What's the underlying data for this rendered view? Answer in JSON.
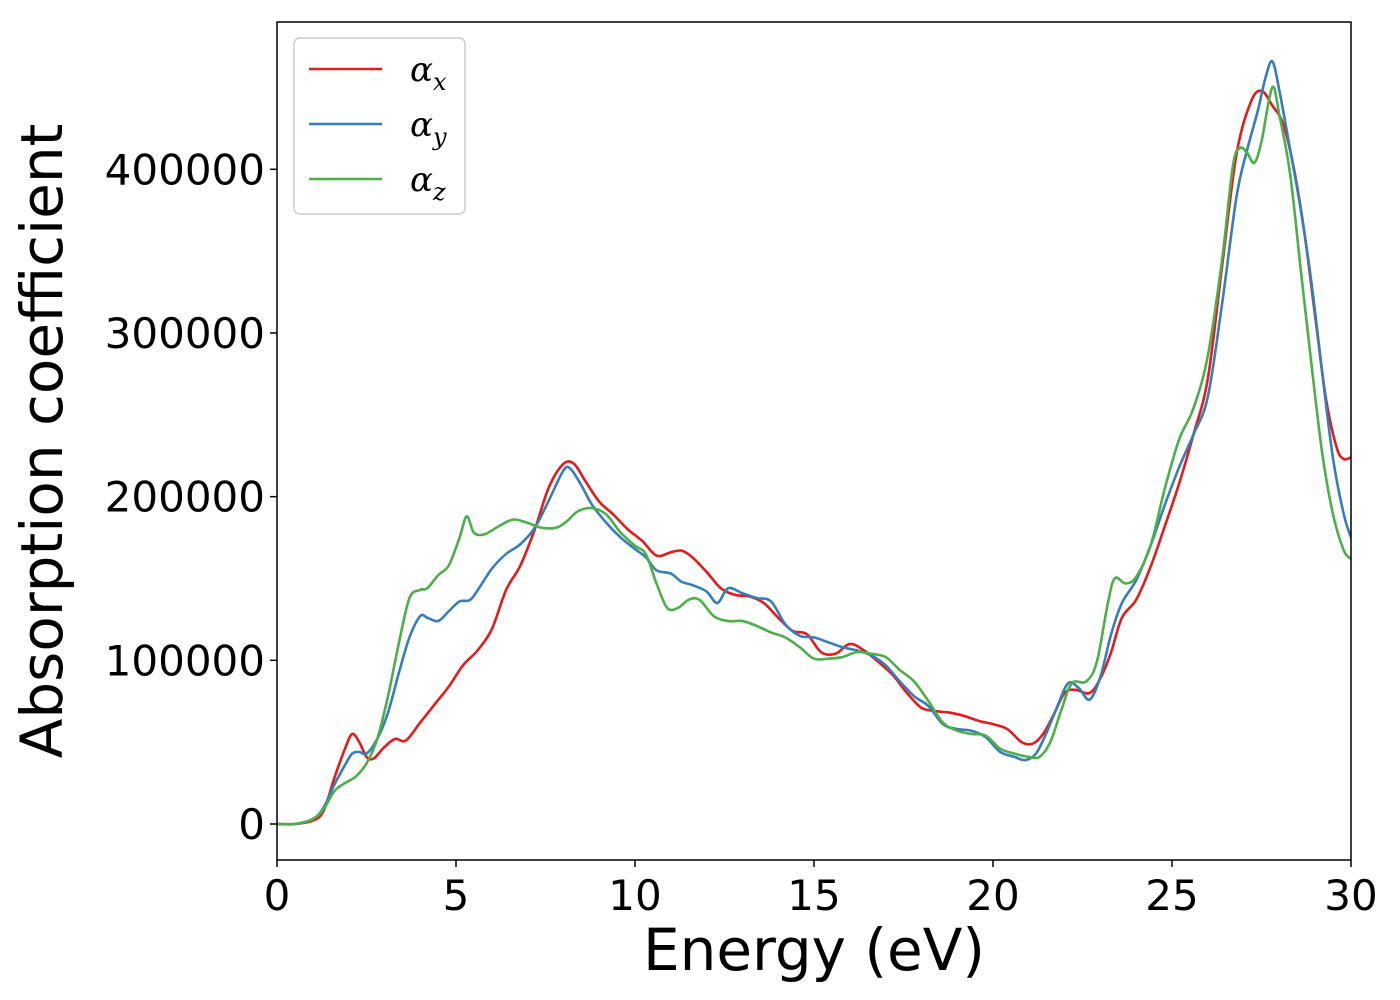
{
  "chart_data": {
    "type": "line",
    "xlabel": "Energy (eV)",
    "ylabel": "Absorption coefficient",
    "xlim": [
      0,
      30
    ],
    "ylim": [
      -22000,
      490000
    ],
    "xticks": [
      0,
      5,
      10,
      15,
      20,
      25,
      30
    ],
    "xtick_labels": [
      "0",
      "5",
      "10",
      "15",
      "20",
      "25",
      "30"
    ],
    "yticks": [
      0,
      100000,
      200000,
      300000,
      400000
    ],
    "ytick_labels": [
      "0",
      "100000",
      "200000",
      "300000",
      "400000"
    ],
    "grid": false,
    "legend_position": "top-left",
    "series": [
      {
        "name": "α",
        "name_subscript": "x",
        "color": "#e41a1c",
        "x": [
          0,
          0.5,
          1.0,
          1.3,
          1.6,
          1.9,
          2.1,
          2.3,
          2.5,
          2.7,
          3.0,
          3.3,
          3.6,
          4.0,
          4.4,
          4.8,
          5.2,
          5.6,
          6.0,
          6.4,
          6.8,
          7.2,
          7.6,
          8.0,
          8.3,
          8.6,
          9.0,
          9.4,
          9.8,
          10.2,
          10.6,
          11.0,
          11.3,
          11.6,
          12.0,
          12.4,
          12.8,
          13.2,
          13.6,
          14.0,
          14.4,
          14.8,
          15.2,
          15.6,
          16.0,
          16.4,
          16.8,
          17.2,
          17.6,
          18.0,
          18.4,
          18.8,
          19.2,
          19.6,
          20.0,
          20.4,
          20.8,
          21.1,
          21.4,
          21.7,
          22.0,
          22.3,
          22.7,
          23.0,
          23.3,
          23.6,
          24.0,
          24.4,
          24.8,
          25.2,
          25.6,
          26.0,
          26.4,
          26.8,
          27.2,
          27.5,
          27.8,
          28.1,
          28.4,
          28.7,
          29.0,
          29.3,
          29.6,
          29.8,
          30.0
        ],
        "y": [
          0,
          0,
          2000,
          8000,
          28000,
          46000,
          55000,
          50000,
          41000,
          40000,
          47000,
          52000,
          51000,
          62000,
          73000,
          84000,
          97000,
          106000,
          119000,
          143000,
          158000,
          180000,
          206000,
          220000,
          220000,
          210000,
          197000,
          189000,
          180000,
          173000,
          164000,
          166000,
          167000,
          163000,
          154000,
          144000,
          140000,
          139000,
          135000,
          126000,
          118000,
          116000,
          105000,
          104000,
          110000,
          106000,
          99000,
          91000,
          80000,
          71000,
          69000,
          68000,
          66000,
          63000,
          61000,
          58000,
          50000,
          49000,
          55000,
          67000,
          80000,
          82000,
          80000,
          89000,
          105000,
          126000,
          137000,
          157000,
          182000,
          208000,
          238000,
          272000,
          341000,
          409000,
          441000,
          448000,
          439000,
          428000,
          401000,
          361000,
          310000,
          260000,
          230000,
          223000,
          224000
        ]
      },
      {
        "name": "α",
        "name_subscript": "y",
        "color": "#377eb8",
        "x": [
          0,
          0.5,
          1.0,
          1.3,
          1.6,
          1.9,
          2.1,
          2.3,
          2.5,
          2.8,
          3.1,
          3.4,
          3.7,
          4.0,
          4.2,
          4.5,
          4.8,
          5.1,
          5.4,
          5.7,
          6.0,
          6.4,
          6.8,
          7.2,
          7.6,
          8.0,
          8.2,
          8.5,
          8.8,
          9.2,
          9.6,
          10.0,
          10.3,
          10.6,
          11.0,
          11.3,
          11.6,
          12.0,
          12.3,
          12.6,
          13.0,
          13.4,
          13.8,
          14.2,
          14.6,
          15.0,
          15.4,
          15.8,
          16.2,
          16.6,
          17.0,
          17.4,
          17.8,
          18.2,
          18.6,
          19.0,
          19.4,
          19.8,
          20.2,
          20.6,
          20.9,
          21.2,
          21.5,
          21.8,
          22.1,
          22.4,
          22.7,
          23.0,
          23.3,
          23.6,
          24.0,
          24.4,
          24.8,
          25.2,
          25.6,
          26.0,
          26.4,
          26.8,
          27.1,
          27.4,
          27.6,
          27.8,
          28.0,
          28.3,
          28.6,
          28.9,
          29.2,
          29.5,
          29.8,
          30.0
        ],
        "y": [
          0,
          0,
          3000,
          10000,
          24000,
          36000,
          43000,
          44000,
          43000,
          52000,
          68000,
          92000,
          114000,
          127000,
          126000,
          124000,
          130000,
          136000,
          137000,
          146000,
          156000,
          165000,
          171000,
          181000,
          198000,
          216000,
          217000,
          207000,
          195000,
          184000,
          175000,
          168000,
          163000,
          155000,
          153000,
          148000,
          146000,
          142000,
          135000,
          144000,
          141000,
          138000,
          136000,
          122000,
          115000,
          114000,
          111000,
          108000,
          106000,
          103000,
          97000,
          87000,
          78000,
          72000,
          61000,
          58000,
          57000,
          53000,
          44000,
          41000,
          39000,
          43000,
          56000,
          72000,
          86000,
          83000,
          76000,
          90000,
          116000,
          135000,
          149000,
          170000,
          195000,
          218000,
          238000,
          261000,
          318000,
          383000,
          412000,
          436000,
          455000,
          466000,
          448000,
          412000,
          375000,
          330000,
          275000,
          223000,
          189000,
          175000
        ]
      },
      {
        "name": "α",
        "name_subscript": "z",
        "color": "#4daf4a",
        "x": [
          0,
          0.5,
          1.0,
          1.3,
          1.6,
          1.9,
          2.2,
          2.5,
          2.8,
          3.1,
          3.4,
          3.7,
          4.0,
          4.2,
          4.5,
          4.8,
          5.1,
          5.3,
          5.5,
          5.8,
          6.2,
          6.6,
          7.0,
          7.4,
          7.8,
          8.1,
          8.4,
          8.8,
          9.2,
          9.6,
          10.0,
          10.3,
          10.6,
          10.9,
          11.2,
          11.5,
          11.8,
          12.2,
          12.6,
          13.0,
          13.4,
          13.8,
          14.2,
          14.6,
          15.0,
          15.4,
          15.8,
          16.2,
          16.6,
          17.0,
          17.4,
          17.8,
          18.2,
          18.6,
          19.0,
          19.4,
          19.8,
          20.2,
          20.6,
          21.0,
          21.3,
          21.6,
          21.9,
          22.2,
          22.6,
          22.9,
          23.2,
          23.4,
          23.7,
          24.0,
          24.4,
          24.8,
          25.2,
          25.6,
          26.0,
          26.4,
          26.7,
          26.9,
          27.1,
          27.3,
          27.5,
          27.8,
          28.0,
          28.3,
          28.6,
          28.9,
          29.2,
          29.5,
          29.8,
          30.0
        ],
        "y": [
          0,
          0,
          3000,
          9000,
          20000,
          25000,
          29000,
          37000,
          52000,
          78000,
          110000,
          138000,
          143000,
          144000,
          152000,
          158000,
          175000,
          188000,
          178000,
          177000,
          182000,
          186000,
          184000,
          181000,
          181000,
          185000,
          191000,
          193000,
          189000,
          178000,
          170000,
          165000,
          147000,
          132000,
          132000,
          137000,
          137000,
          127000,
          124000,
          124000,
          121000,
          117000,
          114000,
          108000,
          101000,
          101000,
          102000,
          105000,
          104000,
          102000,
          94000,
          87000,
          75000,
          62000,
          57000,
          55000,
          54000,
          46000,
          43000,
          41000,
          41000,
          50000,
          69000,
          86000,
          87000,
          99000,
          134000,
          150000,
          147000,
          151000,
          170000,
          205000,
          235000,
          254000,
          286000,
          345000,
          402000,
          413000,
          410000,
          404000,
          417000,
          450000,
          433000,
          397000,
          338000,
          280000,
          226000,
          189000,
          167000,
          162000
        ]
      }
    ]
  }
}
